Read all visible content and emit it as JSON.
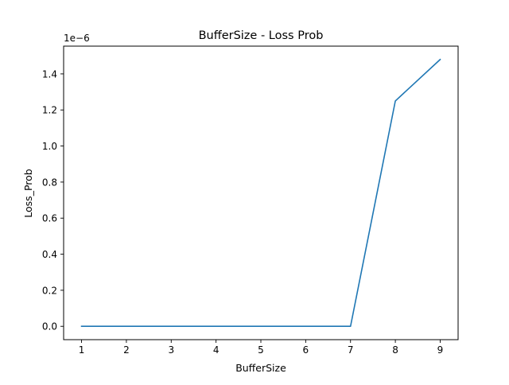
{
  "chart_data": {
    "type": "line",
    "title": "BufferSize - Loss Prob",
    "xlabel": "BufferSize",
    "ylabel": "Loss_Prob",
    "offset_text": "1e−6",
    "x": [
      1,
      2,
      3,
      4,
      5,
      6,
      7,
      8,
      9
    ],
    "x_ticks": [
      1,
      2,
      3,
      4,
      5,
      6,
      7,
      8,
      9
    ],
    "x_tick_labels": [
      "1",
      "2",
      "3",
      "4",
      "5",
      "6",
      "7",
      "8",
      "9"
    ],
    "y_ticks": [
      0.0,
      0.2,
      0.4,
      0.6,
      0.8,
      1.0,
      1.2,
      1.4
    ],
    "y_tick_labels": [
      "0.0",
      "0.2",
      "0.4",
      "0.6",
      "0.8",
      "1.0",
      "1.2",
      "1.4"
    ],
    "y_multiplier": 1e-06,
    "xlim": [
      0.6,
      9.4
    ],
    "ylim": [
      -0.074,
      1.554
    ],
    "grid": false,
    "series": [
      {
        "color": "#1f77b4",
        "values": [
          0.0,
          0.0,
          0.0,
          0.0,
          0.0,
          0.0,
          0.0,
          1.25,
          1.48
        ]
      }
    ]
  }
}
